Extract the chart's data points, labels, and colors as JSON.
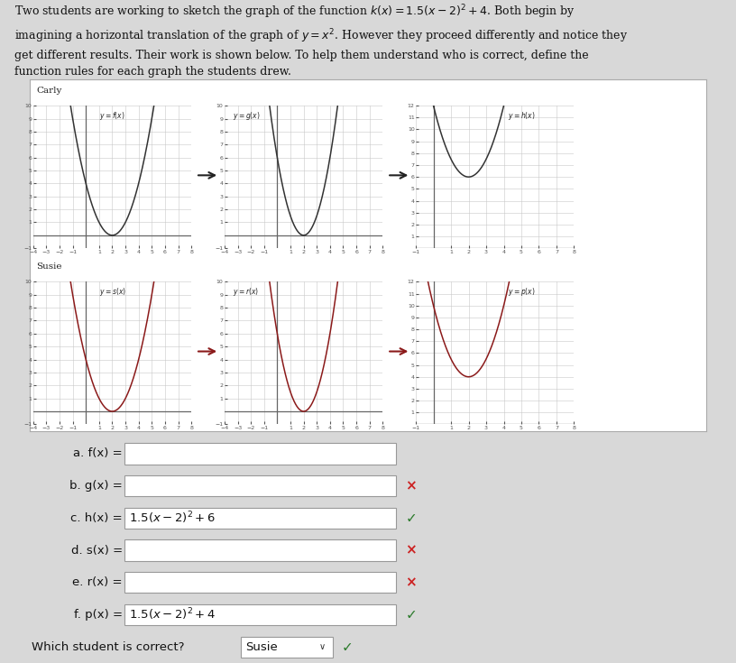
{
  "title_lines": [
    "Two students are working to sketch the graph of the function k(x) = 1.5(x − 2)² + 4. Both begin by",
    "imagining a horizontal translation of the graph of y = x². However they proceed differently and notice they",
    "get different results. Their work is shown below. To help them understand who is correct, define the",
    "function rules for each graph the students drew."
  ],
  "student1_name": "Carly",
  "student2_name": "Susie",
  "carly_curve_color": "#333333",
  "susie_curve_color": "#8b1a1a",
  "carly_arrow_color": "#222222",
  "susie_arrow_color": "#8b1a1a",
  "graph_bg": "#ffffff",
  "grid_color": "#cccccc",
  "axis_color": "#555555",
  "form_labels": [
    "a. f(x) =",
    "b. g(x) =",
    "c. h(x) =",
    "d. s(x) =",
    "e. r(x) =",
    "f. p(x) ="
  ],
  "form_values": [
    "",
    "",
    "1.5(x − 2)² + 6",
    "",
    "",
    "1.5(x − 2)² + 4"
  ],
  "form_markers": [
    "none",
    "x",
    "check",
    "x",
    "x",
    "check"
  ],
  "which_correct_label": "Which student is correct?",
  "which_correct_value": "Susie",
  "page_bg": "#d8d8d8",
  "panel_bg": "#ffffff",
  "form_bg": "#e0e0e0"
}
